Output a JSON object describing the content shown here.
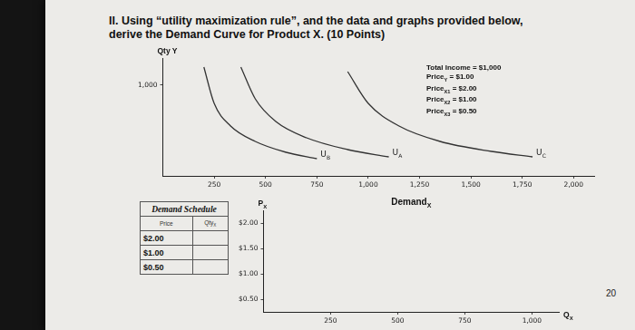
{
  "heading": [
    "II. Using “utility maximization rule”, and the data and graphs provided below,",
    "derive the Demand Curve for Product X. (10 Points)"
  ],
  "budget_info": [
    [
      "Total Income = $1,000"
    ],
    [
      "Price",
      "Y",
      " = $1.00"
    ],
    [
      "Price",
      "X1",
      " = $2.00"
    ],
    [
      "Price",
      "X2",
      " = $1.00"
    ],
    [
      "Price",
      "X3",
      " = $0.50"
    ]
  ],
  "table": {
    "title": "Demand Schedule",
    "header": [
      [
        "Price"
      ],
      [
        "Qty",
        "X"
      ]
    ],
    "rows": [
      [
        "$2.00"
      ],
      [
        "$1.00"
      ],
      [
        "$0.50"
      ]
    ]
  },
  "page_number": "20",
  "chart_data": [
    {
      "type": "line",
      "y_label": [
        "Qty Y"
      ],
      "xlim": [
        0,
        2100
      ],
      "xticks": [
        250,
        500,
        750,
        {
          "value": 1000,
          "label": "1,000"
        },
        {
          "value": 1250,
          "label": "1,250"
        },
        {
          "value": 1500,
          "label": "1,500"
        },
        {
          "value": 1750,
          "label": "1,750"
        },
        {
          "value": 2000,
          "label": "2,000"
        }
      ],
      "ylim": [
        0,
        1300
      ],
      "yticks": [
        {
          "value": 1000,
          "label": "1,000"
        }
      ],
      "grid": false,
      "series": [
        {
          "name": "UB",
          "color": "#333333",
          "x": [
            200,
            250,
            330,
            450,
            600,
            750
          ],
          "values": [
            1200,
            800,
            550,
            380,
            260,
            190
          ]
        },
        {
          "name": "UA",
          "color": "#333333",
          "x": [
            380,
            450,
            550,
            700,
            900,
            1100
          ],
          "values": [
            1200,
            850,
            600,
            420,
            290,
            210
          ]
        },
        {
          "name": "UC",
          "color": "#333333",
          "x": [
            900,
            1000,
            1150,
            1350,
            1600,
            1800
          ],
          "values": [
            1150,
            800,
            550,
            380,
            270,
            210
          ]
        }
      ]
    },
    {
      "type": "line",
      "title": [
        "Demand",
        "X"
      ],
      "y_label": [
        "P",
        "X"
      ],
      "x_label": [
        "Q",
        "X"
      ],
      "xlim": [
        0,
        1100
      ],
      "xticks": [
        250,
        500,
        750,
        {
          "value": 1000,
          "label": "1,000"
        }
      ],
      "ylim": [
        0.25,
        2.25
      ],
      "yticks": [
        {
          "value": 0.5,
          "label": "$0.50"
        },
        {
          "value": 1,
          "label": "$1.00"
        },
        {
          "value": 1.5,
          "label": "$1.50"
        },
        {
          "value": 2,
          "label": "$2.00"
        }
      ],
      "grid": false,
      "series": []
    }
  ]
}
